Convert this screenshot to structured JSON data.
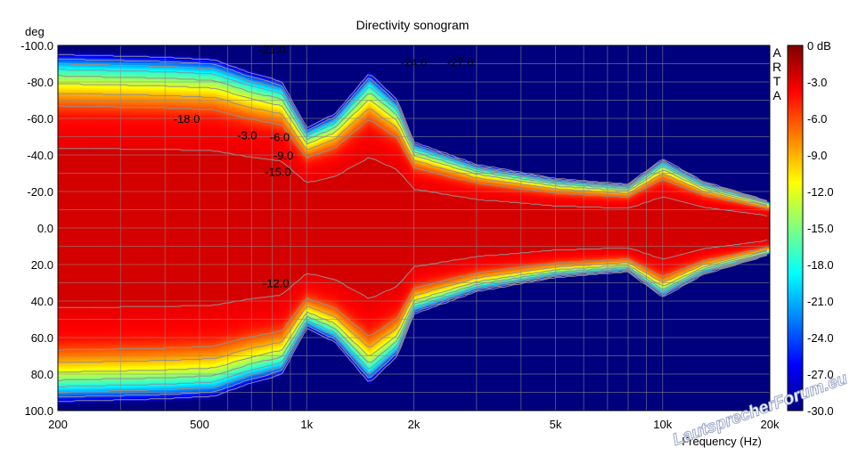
{
  "chart_data": {
    "type": "heatmap",
    "title": "Directivity sonogram",
    "xlabel": "Frequency (Hz)",
    "ylabel": "deg",
    "x_scale": "log",
    "xlim": [
      200,
      20000
    ],
    "ylim": [
      -100,
      100
    ],
    "x_ticks": [
      {
        "value": 200,
        "label": "200"
      },
      {
        "value": 500,
        "label": "500"
      },
      {
        "value": 1000,
        "label": "1k"
      },
      {
        "value": 2000,
        "label": "2k"
      },
      {
        "value": 5000,
        "label": "5k"
      },
      {
        "value": 10000,
        "label": "10k"
      },
      {
        "value": 20000,
        "label": "20k"
      }
    ],
    "y_ticks": [
      {
        "value": -100,
        "label": "-100.0"
      },
      {
        "value": -80,
        "label": "-80.0"
      },
      {
        "value": -60,
        "label": "-60.0"
      },
      {
        "value": -40,
        "label": "-40.0"
      },
      {
        "value": -20,
        "label": "-20.0"
      },
      {
        "value": 0,
        "label": "0.0"
      },
      {
        "value": 20,
        "label": "20.0"
      },
      {
        "value": 40,
        "label": "40.0"
      },
      {
        "value": 60,
        "label": "60.0"
      },
      {
        "value": 80,
        "label": "80.0"
      },
      {
        "value": 100,
        "label": "100.0"
      }
    ],
    "grid": true,
    "colorbar": {
      "range": [
        -30,
        0
      ],
      "labels": [
        {
          "value": 0,
          "label": "0 dB"
        },
        {
          "value": -3,
          "label": "-3.0"
        },
        {
          "value": -6,
          "label": "-6.0"
        },
        {
          "value": -9,
          "label": "-9.0"
        },
        {
          "value": -12,
          "label": "-12.0"
        },
        {
          "value": -15,
          "label": "-15.0"
        },
        {
          "value": -18,
          "label": "-18.0"
        },
        {
          "value": -21,
          "label": "-21.0"
        },
        {
          "value": -24,
          "label": "-24.0"
        },
        {
          "value": -27,
          "label": "-27.0"
        },
        {
          "value": -30,
          "label": "-30.0"
        }
      ],
      "colormap": "jet"
    },
    "contour_levels": [
      -3,
      -6,
      -9,
      -12,
      -15,
      -18,
      -21,
      -24,
      -27
    ],
    "contour_annotations": [
      {
        "label": "-21.0",
        "freq": 800,
        "deg": -98
      },
      {
        "label": "-24.0",
        "freq": 2000,
        "deg": -91
      },
      {
        "label": "-27.0",
        "freq": 2700,
        "deg": -91
      },
      {
        "label": "-18.0",
        "freq": 460,
        "deg": -60
      },
      {
        "label": "-3.0",
        "freq": 680,
        "deg": -51
      },
      {
        "label": "-6.0",
        "freq": 840,
        "deg": -50
      },
      {
        "label": "-9.0",
        "freq": 860,
        "deg": -40
      },
      {
        "label": "-15.0",
        "freq": 830,
        "deg": -31
      },
      {
        "label": "-12.0",
        "freq": 820,
        "deg": 30
      }
    ],
    "beamwidth_half_angle_deg": [
      {
        "freq": 200,
        "deg": 62
      },
      {
        "freq": 400,
        "deg": 61
      },
      {
        "freq": 550,
        "deg": 60
      },
      {
        "freq": 700,
        "deg": 55
      },
      {
        "freq": 850,
        "deg": 52
      },
      {
        "freq": 1000,
        "deg": 35
      },
      {
        "freq": 1200,
        "deg": 40
      },
      {
        "freq": 1500,
        "deg": 55
      },
      {
        "freq": 1800,
        "deg": 45
      },
      {
        "freq": 2000,
        "deg": 30
      },
      {
        "freq": 3000,
        "deg": 22
      },
      {
        "freq": 5000,
        "deg": 17
      },
      {
        "freq": 8000,
        "deg": 15
      },
      {
        "freq": 10000,
        "deg": 24
      },
      {
        "freq": 13000,
        "deg": 16
      },
      {
        "freq": 20000,
        "deg": 9
      }
    ]
  },
  "brand": {
    "letters": [
      "A",
      "R",
      "T",
      "A"
    ]
  },
  "watermark": {
    "text": "LautsprecherForum.eu"
  },
  "colors": {
    "background": "#ffffff",
    "grid": "#8c8c8c",
    "contour": "#909090"
  }
}
